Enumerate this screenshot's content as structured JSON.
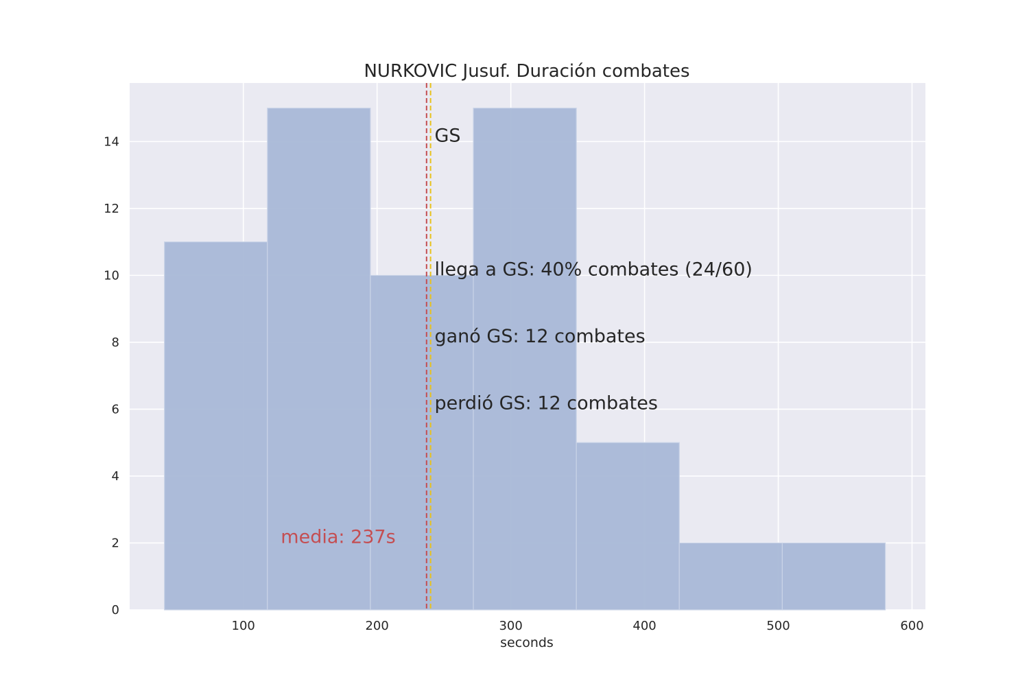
{
  "chart_data": {
    "type": "bar",
    "title": "NURKOVIC Jusuf. Duración combates",
    "xlabel": "seconds",
    "ylabel": "",
    "xlim": [
      15,
      610
    ],
    "ylim": [
      0,
      15.75
    ],
    "xticks": [
      100,
      200,
      300,
      400,
      500,
      600
    ],
    "yticks": [
      0,
      2,
      4,
      6,
      8,
      10,
      12,
      14
    ],
    "grid": true,
    "bins": [
      {
        "x0": 41,
        "x1": 118,
        "count": 11
      },
      {
        "x0": 118,
        "x1": 195,
        "count": 15
      },
      {
        "x0": 195,
        "x1": 272,
        "count": 10
      },
      {
        "x0": 272,
        "x1": 349,
        "count": 15
      },
      {
        "x0": 349,
        "x1": 426,
        "count": 5
      },
      {
        "x0": 426,
        "x1": 503,
        "count": 2
      },
      {
        "x0": 503,
        "x1": 580,
        "count": 2
      }
    ],
    "vlines": [
      {
        "name": "mean",
        "x": 237,
        "color": "#c44e52"
      },
      {
        "name": "gs",
        "x": 240,
        "color": "#e8c21c"
      }
    ],
    "annotations": [
      {
        "name": "gs-label",
        "text": "GS",
        "x": 243,
        "y": 14.0
      },
      {
        "name": "gs-reach",
        "text": "llega a GS: 40% combates (24/60)",
        "x": 243,
        "y": 10.0
      },
      {
        "name": "gs-won",
        "text": "ganó GS: 12 combates",
        "x": 243,
        "y": 8.0
      },
      {
        "name": "gs-lost",
        "text": "perdió GS: 12 combates",
        "x": 243,
        "y": 6.0
      },
      {
        "name": "mean-label",
        "text": "media: 237s",
        "x": 128,
        "y": 2.0,
        "color": "#c44e52"
      }
    ],
    "colors": {
      "background": "#eaeaf2",
      "grid": "#ffffff",
      "bar": "#a9b8d7",
      "bar_edge": "#c9d3e7"
    }
  }
}
